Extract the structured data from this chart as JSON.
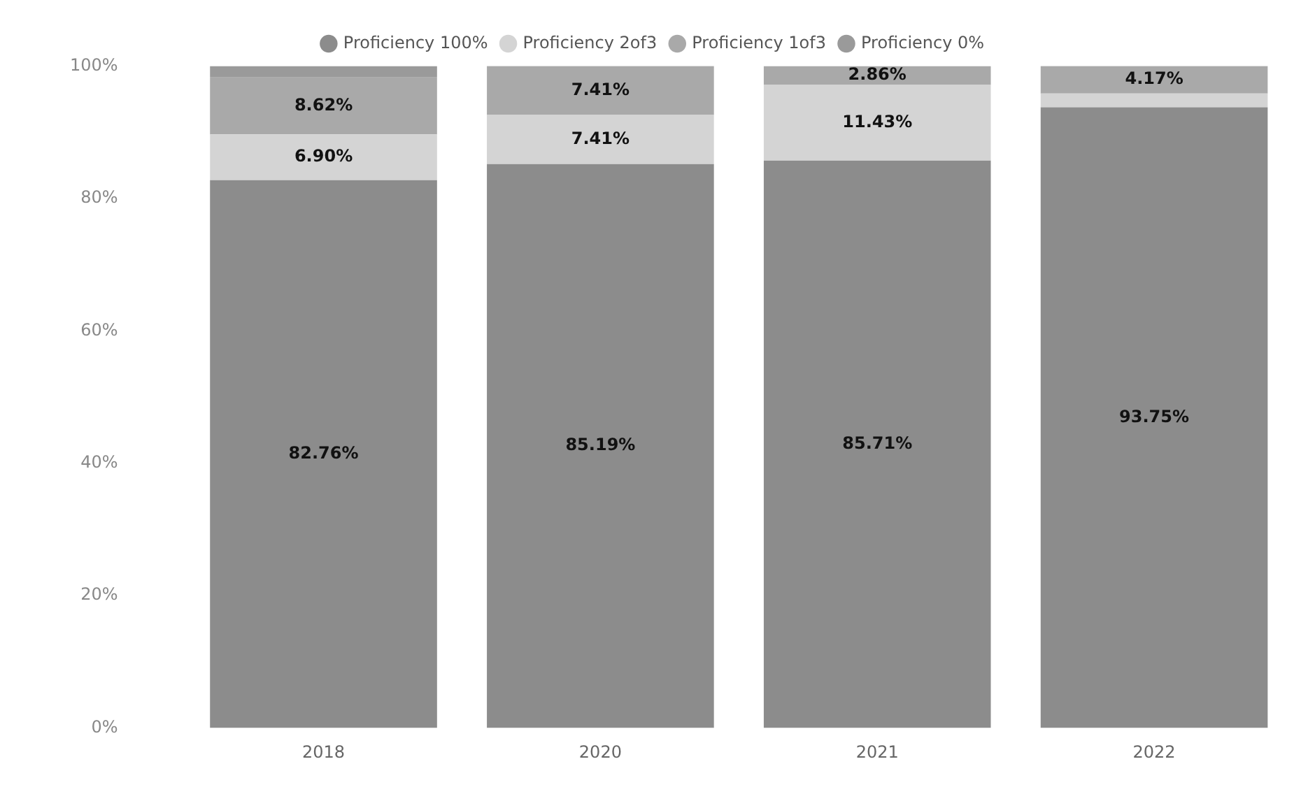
{
  "chart_data": {
    "type": "bar",
    "stacked": true,
    "categories": [
      "2018",
      "2020",
      "2021",
      "2022"
    ],
    "series": [
      {
        "name": "Proficiency 100%",
        "color": "#8c8c8c",
        "values": [
          82.76,
          85.19,
          85.71,
          93.75
        ],
        "value_labels": [
          "82.76%",
          "85.19%",
          "85.71%",
          "93.75%"
        ]
      },
      {
        "name": "Proficiency 2of3",
        "color": "#d4d4d4",
        "values": [
          6.9,
          7.41,
          11.43,
          2.1
        ],
        "value_labels": [
          "6.90%",
          "7.41%",
          "11.43%",
          null
        ]
      },
      {
        "name": "Proficiency 1of3",
        "color": "#a9a9a9",
        "values": [
          8.62,
          7.41,
          2.86,
          4.17
        ],
        "value_labels": [
          "8.62%",
          "7.41%",
          "2.86%",
          "4.17%"
        ]
      },
      {
        "name": "Proficiency 0%",
        "color": "#9a9a9a",
        "values": [
          1.7,
          0,
          0,
          0
        ],
        "value_labels": [
          null,
          null,
          null,
          null
        ]
      }
    ],
    "ylim": [
      0,
      100
    ],
    "yticks": [
      {
        "value": 0,
        "label": "0%"
      },
      {
        "value": 20,
        "label": "20%"
      },
      {
        "value": 40,
        "label": "40%"
      },
      {
        "value": 60,
        "label": "60%"
      },
      {
        "value": 80,
        "label": "80%"
      },
      {
        "value": 100,
        "label": "100%"
      }
    ],
    "grid": false,
    "legend": "top",
    "marker": "circle"
  }
}
